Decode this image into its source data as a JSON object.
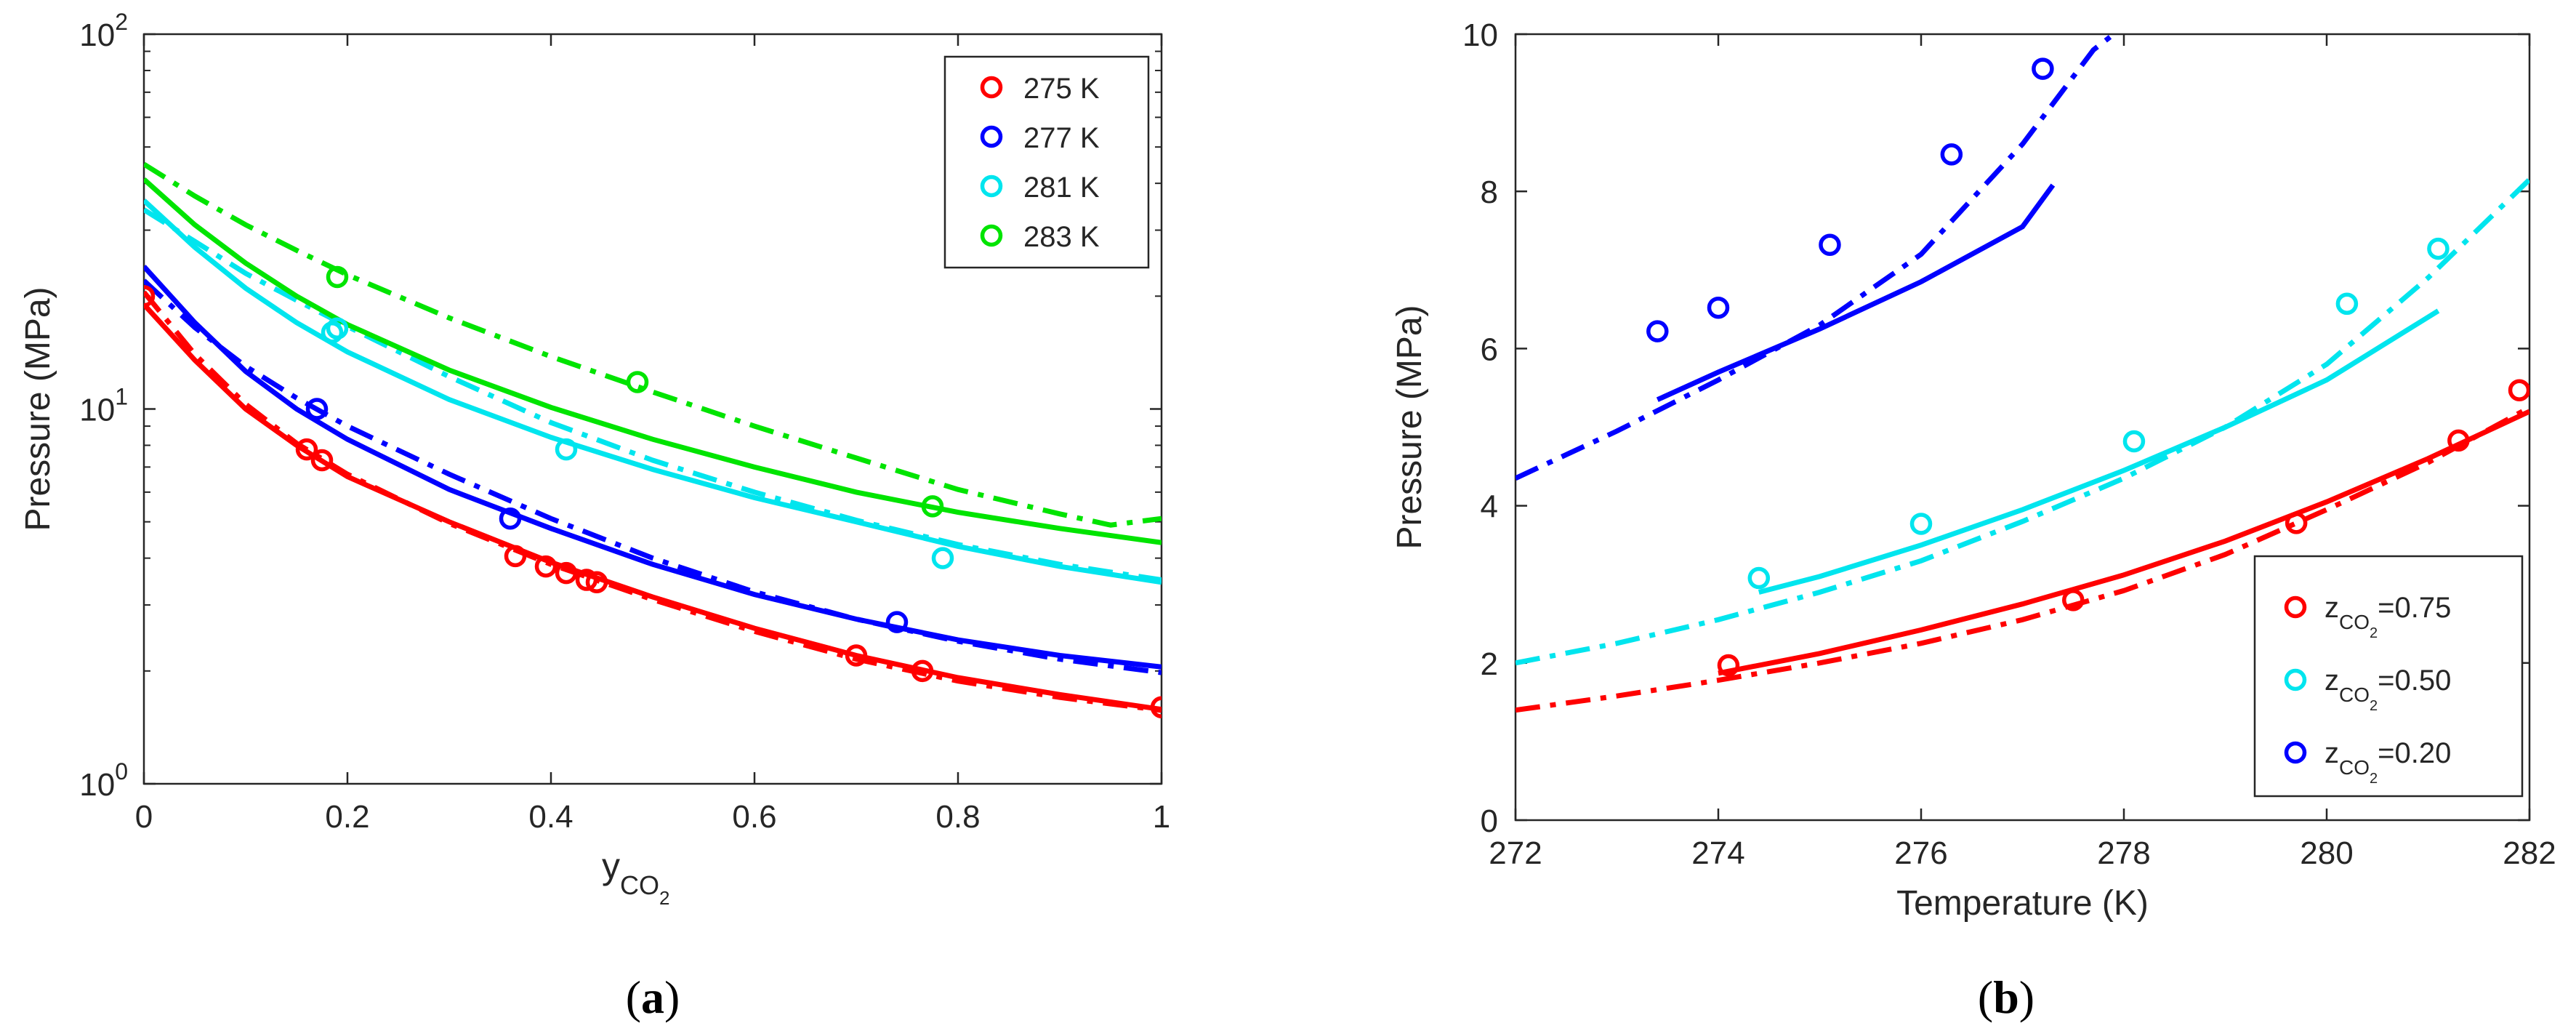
{
  "chart_data": [
    {
      "type": "scatter",
      "panel_label_open": "(",
      "panel_label_letter": "a",
      "panel_label_close": ")",
      "xlabel": "y",
      "xlabel_sub": "CO",
      "xlabel_subsub": "2",
      "ylabel": "Pressure (MPa)",
      "xscale": "linear",
      "yscale": "log",
      "xlim": [
        0,
        1
      ],
      "ylim": [
        1,
        100
      ],
      "xticks": [
        0,
        0.2,
        0.4,
        0.6,
        0.8,
        1
      ],
      "xtick_labels": [
        "0",
        "0.2",
        "0.4",
        "0.6",
        "0.8",
        "1"
      ],
      "yticks": [
        {
          "value": 1,
          "base": "10",
          "exp": "0"
        },
        {
          "value": 10,
          "base": "10",
          "exp": "1"
        },
        {
          "value": 100,
          "base": "10",
          "exp": "2"
        }
      ],
      "legend_position": "top-right",
      "series": [
        {
          "name": "275 K",
          "color": "#ff0000",
          "points": [
            [
              0,
              20
            ],
            [
              0.16,
              7.8
            ],
            [
              0.175,
              7.3
            ],
            [
              0.365,
              4.05
            ],
            [
              0.395,
              3.8
            ],
            [
              0.415,
              3.65
            ],
            [
              0.435,
              3.5
            ],
            [
              0.445,
              3.45
            ],
            [
              0.7,
              2.2
            ],
            [
              0.765,
              2.0
            ],
            [
              1,
              1.6
            ]
          ],
          "solid": [
            [
              0,
              19
            ],
            [
              0.05,
              13.5
            ],
            [
              0.1,
              10
            ],
            [
              0.15,
              8
            ],
            [
              0.2,
              6.6
            ],
            [
              0.3,
              5.0
            ],
            [
              0.4,
              3.9
            ],
            [
              0.5,
              3.15
            ],
            [
              0.6,
              2.6
            ],
            [
              0.7,
              2.2
            ],
            [
              0.8,
              1.92
            ],
            [
              0.9,
              1.73
            ],
            [
              1,
              1.58
            ]
          ],
          "dashdot": [
            [
              0,
              20.5
            ],
            [
              0.05,
              14
            ],
            [
              0.1,
              10.3
            ],
            [
              0.15,
              8.1
            ],
            [
              0.2,
              6.7
            ],
            [
              0.3,
              4.95
            ],
            [
              0.4,
              3.85
            ],
            [
              0.5,
              3.1
            ],
            [
              0.6,
              2.55
            ],
            [
              0.7,
              2.15
            ],
            [
              0.8,
              1.88
            ],
            [
              0.9,
              1.7
            ],
            [
              1,
              1.57
            ]
          ]
        },
        {
          "name": "277 K",
          "color": "#0000ff",
          "points": [
            [
              0.17,
              10
            ],
            [
              0.36,
              5.1
            ],
            [
              0.74,
              2.7
            ]
          ],
          "solid": [
            [
              0,
              24
            ],
            [
              0.05,
              17
            ],
            [
              0.1,
              12.6
            ],
            [
              0.15,
              10
            ],
            [
              0.2,
              8.3
            ],
            [
              0.3,
              6.1
            ],
            [
              0.4,
              4.8
            ],
            [
              0.5,
              3.85
            ],
            [
              0.6,
              3.2
            ],
            [
              0.7,
              2.75
            ],
            [
              0.8,
              2.42
            ],
            [
              0.9,
              2.2
            ],
            [
              1,
              2.05
            ]
          ],
          "dashdot": [
            [
              0,
              22
            ],
            [
              0.05,
              16.5
            ],
            [
              0.1,
              13
            ],
            [
              0.15,
              10.7
            ],
            [
              0.2,
              9
            ],
            [
              0.3,
              6.7
            ],
            [
              0.4,
              5.1
            ],
            [
              0.5,
              4.0
            ],
            [
              0.6,
              3.25
            ],
            [
              0.7,
              2.75
            ],
            [
              0.8,
              2.4
            ],
            [
              0.9,
              2.15
            ],
            [
              1,
              1.98
            ]
          ]
        },
        {
          "name": "281 K",
          "color": "#00e5ee",
          "points": [
            [
              0.185,
              16
            ],
            [
              0.19,
              16.4
            ],
            [
              0.415,
              7.8
            ],
            [
              0.785,
              4.0
            ]
          ],
          "solid": [
            [
              0,
              36
            ],
            [
              0.05,
              27
            ],
            [
              0.1,
              21
            ],
            [
              0.15,
              17
            ],
            [
              0.2,
              14.2
            ],
            [
              0.3,
              10.6
            ],
            [
              0.4,
              8.4
            ],
            [
              0.5,
              6.9
            ],
            [
              0.6,
              5.8
            ],
            [
              0.7,
              5.0
            ],
            [
              0.8,
              4.3
            ],
            [
              0.9,
              3.8
            ],
            [
              1,
              3.45
            ]
          ],
          "dashdot": [
            [
              0,
              34
            ],
            [
              0.05,
              28
            ],
            [
              0.1,
              23
            ],
            [
              0.15,
              19.5
            ],
            [
              0.2,
              16.6
            ],
            [
              0.3,
              12.2
            ],
            [
              0.4,
              9.2
            ],
            [
              0.5,
              7.3
            ],
            [
              0.6,
              6.0
            ],
            [
              0.7,
              5.05
            ],
            [
              0.8,
              4.35
            ],
            [
              0.9,
              3.85
            ],
            [
              1,
              3.5
            ]
          ]
        },
        {
          "name": "283 K",
          "color": "#00e400",
          "points": [
            [
              0.19,
              22.5
            ],
            [
              0.485,
              11.8
            ],
            [
              0.775,
              5.5
            ]
          ],
          "solid": [
            [
              0,
              41
            ],
            [
              0.05,
              31
            ],
            [
              0.1,
              24.5
            ],
            [
              0.15,
              20
            ],
            [
              0.2,
              16.8
            ],
            [
              0.3,
              12.7
            ],
            [
              0.4,
              10.1
            ],
            [
              0.5,
              8.3
            ],
            [
              0.6,
              7.0
            ],
            [
              0.7,
              6.0
            ],
            [
              0.8,
              5.3
            ],
            [
              0.9,
              4.8
            ],
            [
              1,
              4.4
            ]
          ],
          "dashdot": [
            [
              0,
              45
            ],
            [
              0.05,
              37
            ],
            [
              0.1,
              31
            ],
            [
              0.15,
              26.5
            ],
            [
              0.2,
              22.8
            ],
            [
              0.3,
              17.5
            ],
            [
              0.4,
              13.8
            ],
            [
              0.5,
              11.1
            ],
            [
              0.6,
              9.0
            ],
            [
              0.7,
              7.4
            ],
            [
              0.8,
              6.1
            ],
            [
              0.9,
              5.25
            ],
            [
              0.95,
              4.9
            ],
            [
              1,
              5.1
            ]
          ]
        }
      ]
    },
    {
      "type": "scatter",
      "panel_label_open": "(",
      "panel_label_letter": "b",
      "panel_label_close": ")",
      "xlabel": "Temperature (K)",
      "ylabel": "Pressure (MPa)",
      "xscale": "linear",
      "yscale": "linear",
      "xlim": [
        272,
        282
      ],
      "ylim": [
        0,
        10
      ],
      "xticks": [
        272,
        274,
        276,
        278,
        280,
        282
      ],
      "xtick_labels": [
        "272",
        "274",
        "276",
        "278",
        "280",
        "282"
      ],
      "yticks": [
        0,
        2,
        4,
        6,
        8,
        10
      ],
      "ytick_labels": [
        "0",
        "2",
        "4",
        "6",
        "8",
        "10"
      ],
      "legend_position": "bottom-right",
      "series": [
        {
          "name_prefix": "z",
          "name_sub": "CO",
          "name_subsub": "2",
          "name_suffix": "=0.75",
          "color": "#ff0000",
          "points": [
            [
              274.1,
              1.97
            ],
            [
              277.5,
              2.8
            ],
            [
              279.7,
              3.78
            ],
            [
              281.3,
              4.83
            ],
            [
              281.9,
              5.47
            ]
          ],
          "solid": [
            [
              274,
              1.87
            ],
            [
              275,
              2.12
            ],
            [
              276,
              2.42
            ],
            [
              277,
              2.75
            ],
            [
              278,
              3.12
            ],
            [
              279,
              3.55
            ],
            [
              280,
              4.05
            ],
            [
              281,
              4.6
            ],
            [
              282,
              5.2
            ]
          ],
          "dashdot": [
            [
              272,
              1.4
            ],
            [
              273,
              1.58
            ],
            [
              274,
              1.78
            ],
            [
              275,
              2.0
            ],
            [
              276,
              2.25
            ],
            [
              277,
              2.55
            ],
            [
              278,
              2.92
            ],
            [
              279,
              3.38
            ],
            [
              280,
              3.95
            ],
            [
              281,
              4.55
            ],
            [
              282,
              5.25
            ]
          ]
        },
        {
          "name_prefix": "z",
          "name_sub": "CO",
          "name_subsub": "2",
          "name_suffix": "=0.50",
          "color": "#00e5ee",
          "points": [
            [
              274.4,
              3.08
            ],
            [
              276,
              3.77
            ],
            [
              278.1,
              4.82
            ],
            [
              280.2,
              6.57
            ],
            [
              281.1,
              7.27
            ]
          ],
          "solid": [
            [
              274.4,
              2.9
            ],
            [
              275,
              3.1
            ],
            [
              276,
              3.5
            ],
            [
              277,
              3.95
            ],
            [
              278,
              4.45
            ],
            [
              279,
              5.0
            ],
            [
              280,
              5.6
            ],
            [
              281,
              6.4
            ],
            [
              281.1,
              6.48
            ]
          ],
          "dashdot": [
            [
              272,
              2.0
            ],
            [
              273,
              2.25
            ],
            [
              274,
              2.55
            ],
            [
              275,
              2.9
            ],
            [
              276,
              3.3
            ],
            [
              277,
              3.8
            ],
            [
              278,
              4.35
            ],
            [
              279,
              5.0
            ],
            [
              280,
              5.8
            ],
            [
              281,
              6.9
            ],
            [
              282,
              8.15
            ]
          ]
        },
        {
          "name_prefix": "z",
          "name_sub": "CO",
          "name_subsub": "2",
          "name_suffix": "=0.20",
          "color": "#0000ff",
          "points": [
            [
              273.4,
              6.22
            ],
            [
              274,
              6.52
            ],
            [
              275.1,
              7.32
            ],
            [
              276.3,
              8.47
            ],
            [
              277.2,
              9.56
            ]
          ],
          "solid": [
            [
              273.4,
              5.35
            ],
            [
              274,
              5.7
            ],
            [
              275,
              6.25
            ],
            [
              276,
              6.85
            ],
            [
              277,
              7.55
            ],
            [
              277.3,
              8.08
            ]
          ],
          "dashdot": [
            [
              272,
              4.35
            ],
            [
              273,
              4.95
            ],
            [
              274,
              5.6
            ],
            [
              275,
              6.3
            ],
            [
              276,
              7.2
            ],
            [
              277,
              8.6
            ],
            [
              277.7,
              9.8
            ],
            [
              277.9,
              10
            ]
          ]
        }
      ]
    }
  ]
}
